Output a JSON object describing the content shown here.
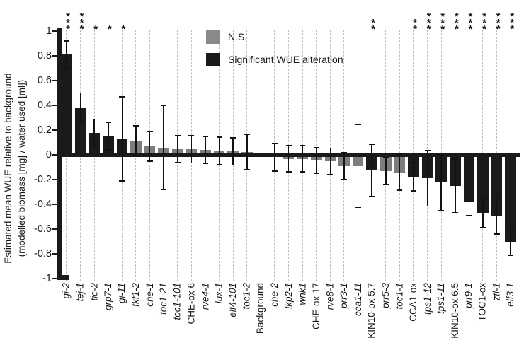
{
  "chart_data": {
    "type": "bar",
    "title": "",
    "ylabel_line1": "Estimated mean WUE relative to background",
    "ylabel_line2": "(modelled biomass [mg] / water used [ml])",
    "ylim": [
      -1,
      1
    ],
    "grid": "vertical-dashed",
    "legend_position": "top-center",
    "legend": [
      {
        "label": "N.S.",
        "color": "#8a8a8a"
      },
      {
        "label": "Significant WUE alteration",
        "color": "#1a1a1a"
      }
    ],
    "colors": {
      "significant": "#1a1a1a",
      "ns": "#7d7d7d",
      "gridline": "#bdbdbd",
      "axis": "#1a1a1a"
    },
    "yticks": [
      {
        "value": 1,
        "label": "1"
      },
      {
        "value": 0.8,
        "label": "0.8"
      },
      {
        "value": 0.6,
        "label": "0.6"
      },
      {
        "value": 0.4,
        "label": "0.4"
      },
      {
        "value": 0.2,
        "label": "0.2"
      },
      {
        "value": 0,
        "label": "0"
      },
      {
        "value": -0.2,
        "label": "-0.2"
      },
      {
        "value": -0.4,
        "label": "-0.4"
      },
      {
        "value": -0.6,
        "label": "-0.6"
      },
      {
        "value": -0.8,
        "label": "-0.8"
      },
      {
        "value": -1,
        "label": "-1"
      }
    ],
    "bars": [
      {
        "label": "gi-2",
        "italic": true,
        "value": 0.81,
        "error": 0.11,
        "sig": "***",
        "significant": true
      },
      {
        "label": "tej-1",
        "italic": true,
        "value": 0.38,
        "error": 0.12,
        "sig": "***",
        "significant": true
      },
      {
        "label": "tic-2",
        "italic": true,
        "value": 0.18,
        "error": 0.11,
        "sig": "*",
        "significant": true
      },
      {
        "label": "grp7-1",
        "italic": true,
        "value": 0.15,
        "error": 0.11,
        "sig": "*",
        "significant": true
      },
      {
        "label": "gi-11",
        "italic": true,
        "value": 0.13,
        "error": 0.34,
        "sig": "*",
        "significant": true
      },
      {
        "label": "fkf1-2",
        "italic": true,
        "value": 0.115,
        "error": 0.12,
        "sig": "",
        "significant": false
      },
      {
        "label": "che-1",
        "italic": true,
        "value": 0.07,
        "error": 0.12,
        "sig": "",
        "significant": false
      },
      {
        "label": "toc1-21",
        "italic": true,
        "value": 0.06,
        "error": 0.34,
        "sig": "",
        "significant": false
      },
      {
        "label": "toc1-101",
        "italic": true,
        "value": 0.048,
        "error": 0.11,
        "sig": "",
        "significant": false
      },
      {
        "label": "CHE-ox 6",
        "italic": false,
        "value": 0.044,
        "error": 0.11,
        "sig": "",
        "significant": false
      },
      {
        "label": "rve4-1",
        "italic": true,
        "value": 0.038,
        "error": 0.11,
        "sig": "",
        "significant": false
      },
      {
        "label": "lux-1",
        "italic": true,
        "value": 0.033,
        "error": 0.11,
        "sig": "",
        "significant": false
      },
      {
        "label": "elf4-101",
        "italic": true,
        "value": 0.028,
        "error": 0.11,
        "sig": "",
        "significant": false
      },
      {
        "label": "toc1-2",
        "italic": true,
        "value": 0.022,
        "error": 0.14,
        "sig": "",
        "significant": false
      },
      {
        "label": "Background",
        "italic": false,
        "value": 0,
        "error": 0,
        "sig": "",
        "significant": false
      },
      {
        "label": "che-2",
        "italic": true,
        "value": -0.018,
        "error": 0.112,
        "sig": "",
        "significant": false
      },
      {
        "label": "lkp2-1",
        "italic": true,
        "value": -0.032,
        "error": 0.105,
        "sig": "",
        "significant": false
      },
      {
        "label": "wnk1",
        "italic": true,
        "value": -0.032,
        "error": 0.105,
        "sig": "",
        "significant": false
      },
      {
        "label": "CHE-ox 17",
        "italic": false,
        "value": -0.047,
        "error": 0.105,
        "sig": "",
        "significant": false
      },
      {
        "label": "rve8-1",
        "italic": true,
        "value": -0.052,
        "error": 0.105,
        "sig": "",
        "significant": false
      },
      {
        "label": "prr3-1",
        "italic": true,
        "value": -0.09,
        "error": 0.11,
        "sig": "",
        "significant": false
      },
      {
        "label": "cca1-11",
        "italic": true,
        "value": -0.09,
        "error": 0.335,
        "sig": "",
        "significant": false
      },
      {
        "label": "KIN10-ox 5.7",
        "italic": false,
        "value": -0.125,
        "error": 0.21,
        "sig": "**",
        "significant": true
      },
      {
        "label": "prr5-3",
        "italic": true,
        "value": -0.13,
        "error": 0.11,
        "sig": "",
        "significant": false
      },
      {
        "label": "toc1-1",
        "italic": true,
        "value": -0.14,
        "error": 0.145,
        "sig": "",
        "significant": false
      },
      {
        "label": "CCA1-ox",
        "italic": false,
        "value": -0.175,
        "error": 0.115,
        "sig": "**",
        "significant": true
      },
      {
        "label": "tps1-12",
        "italic": true,
        "value": -0.19,
        "error": 0.225,
        "sig": "***",
        "significant": true
      },
      {
        "label": "tps1-11",
        "italic": true,
        "value": -0.225,
        "error": 0.225,
        "sig": "***",
        "significant": true
      },
      {
        "label": "KIN10-ox 6.5",
        "italic": false,
        "value": -0.25,
        "error": 0.215,
        "sig": "***",
        "significant": true
      },
      {
        "label": "prr9-1",
        "italic": true,
        "value": -0.375,
        "error": 0.115,
        "sig": "***",
        "significant": true
      },
      {
        "label": "TOC1-ox",
        "italic": false,
        "value": -0.47,
        "error": 0.115,
        "sig": "***",
        "significant": true
      },
      {
        "label": "ztl-1",
        "italic": true,
        "value": -0.49,
        "error": 0.15,
        "sig": "***",
        "significant": true
      },
      {
        "label": "elf3-1",
        "italic": true,
        "value": -0.7,
        "error": 0.115,
        "sig": "***",
        "significant": true
      }
    ]
  }
}
